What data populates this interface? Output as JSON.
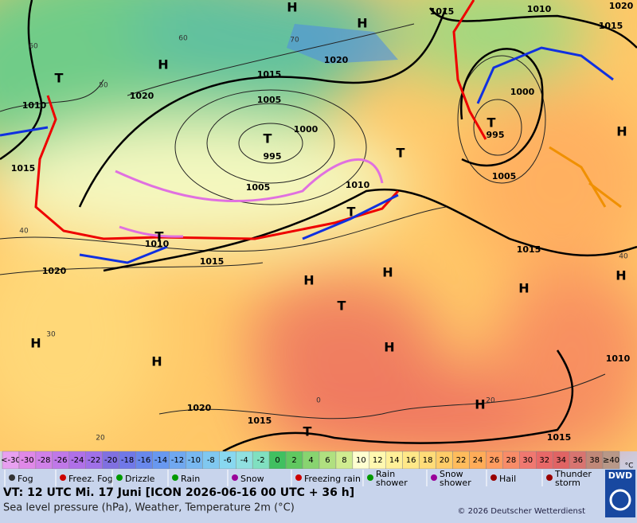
{
  "map": {
    "pressure_labels": [
      "1015",
      "1010",
      "1020",
      "1015",
      "1020",
      "1015",
      "1020",
      "1005",
      "1000",
      "1010",
      "995",
      "1015",
      "1005",
      "1010",
      "1000",
      "995",
      "1005",
      "1010",
      "1015",
      "1020",
      "1015",
      "1020",
      "1015",
      "1010",
      "1015"
    ],
    "centers": [
      "H",
      "H",
      "H",
      "H",
      "H",
      "H",
      "H",
      "H",
      "H",
      "H",
      "H",
      "H",
      "T",
      "T",
      "T",
      "T",
      "T",
      "T",
      "T",
      "T"
    ],
    "temperature_labels": [
      "60",
      "70",
      "50",
      "40",
      "30",
      "20",
      "0",
      "20",
      "40",
      "60"
    ]
  },
  "scale": {
    "unit": "°C",
    "entries": [
      {
        "label": "<-30",
        "color": "#e8a0f0"
      },
      {
        "label": "-30",
        "color": "#e088e8"
      },
      {
        "label": "-28",
        "color": "#d080e8"
      },
      {
        "label": "-26",
        "color": "#c078e8"
      },
      {
        "label": "-24",
        "color": "#b070e8"
      },
      {
        "label": "-22",
        "color": "#a070e8"
      },
      {
        "label": "-20",
        "color": "#8070e0"
      },
      {
        "label": "-18",
        "color": "#7078e8"
      },
      {
        "label": "-16",
        "color": "#6888ec"
      },
      {
        "label": "-14",
        "color": "#6898f0"
      },
      {
        "label": "-12",
        "color": "#70a8f0"
      },
      {
        "label": "-10",
        "color": "#78b8f0"
      },
      {
        "label": "-8",
        "color": "#80c8f0"
      },
      {
        "label": "-6",
        "color": "#88d8f0"
      },
      {
        "label": "-4",
        "color": "#90e0e0"
      },
      {
        "label": "-2",
        "color": "#80e0c0"
      },
      {
        "label": "0",
        "color": "#40c060"
      },
      {
        "label": "2",
        "color": "#60c860"
      },
      {
        "label": "4",
        "color": "#88d470"
      },
      {
        "label": "6",
        "color": "#b0e080"
      },
      {
        "label": "8",
        "color": "#d0ec90"
      },
      {
        "label": "10",
        "color": "#ffffd0"
      },
      {
        "label": "12",
        "color": "#fff8b0"
      },
      {
        "label": "14",
        "color": "#fff098"
      },
      {
        "label": "16",
        "color": "#ffe888"
      },
      {
        "label": "18",
        "color": "#ffdc78"
      },
      {
        "label": "20",
        "color": "#ffcc68"
      },
      {
        "label": "22",
        "color": "#ffbc5c"
      },
      {
        "label": "24",
        "color": "#ffac58"
      },
      {
        "label": "26",
        "color": "#ff9c60"
      },
      {
        "label": "28",
        "color": "#f88c68"
      },
      {
        "label": "30",
        "color": "#f07870"
      },
      {
        "label": "32",
        "color": "#e86868"
      },
      {
        "label": "34",
        "color": "#e06464"
      },
      {
        "label": "36",
        "color": "#d87470"
      },
      {
        "label": "38",
        "color": "#c08878"
      },
      {
        "label": "≥40",
        "color": "#b89888"
      }
    ]
  },
  "weather_legend": [
    "Fog",
    "Freez. Fog",
    "Drizzle",
    "Rain",
    "Snow",
    "Freezing rain",
    "Rain shower",
    "Snow shower",
    "Hail",
    "Thunder storm"
  ],
  "footer": {
    "valid_time": "VT: 12 UTC Mi.  17 Juni [ICON 2026-06-16  00 UTC + 36 h]",
    "description": "Sea level pressure (hPa), Weather, Temperature 2m (°C)",
    "copyright": "© 2026 Deutscher Wetterdienst",
    "logo": "DWD"
  }
}
